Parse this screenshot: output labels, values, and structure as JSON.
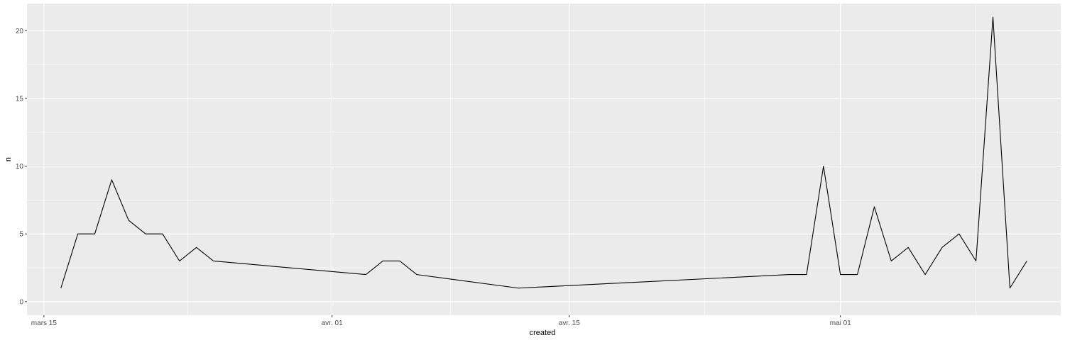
{
  "chart_data": {
    "type": "line",
    "xlabel": "created",
    "ylabel": "n",
    "x_ticks": [
      {
        "date": "2020-03-15",
        "label": "mars 15"
      },
      {
        "date": "2020-04-01",
        "label": "avr. 01"
      },
      {
        "date": "2020-04-15",
        "label": "avr. 15"
      },
      {
        "date": "2020-05-01",
        "label": "mai 01"
      }
    ],
    "y_ticks": [
      0,
      5,
      10,
      15,
      20
    ],
    "xlim": [
      "2020-03-14",
      "2020-05-14"
    ],
    "ylim": [
      -1,
      22
    ],
    "grid": true,
    "series": [
      {
        "color": "#000000",
        "points": [
          {
            "x": "2020-03-16",
            "y": 1
          },
          {
            "x": "2020-03-17",
            "y": 5
          },
          {
            "x": "2020-03-18",
            "y": 5
          },
          {
            "x": "2020-03-19",
            "y": 9
          },
          {
            "x": "2020-03-20",
            "y": 6
          },
          {
            "x": "2020-03-21",
            "y": 5
          },
          {
            "x": "2020-03-22",
            "y": 5
          },
          {
            "x": "2020-03-23",
            "y": 3
          },
          {
            "x": "2020-03-24",
            "y": 4
          },
          {
            "x": "2020-03-25",
            "y": 3
          },
          {
            "x": "2020-04-03",
            "y": 2
          },
          {
            "x": "2020-04-04",
            "y": 3
          },
          {
            "x": "2020-04-05",
            "y": 3
          },
          {
            "x": "2020-04-06",
            "y": 2
          },
          {
            "x": "2020-04-12",
            "y": 1
          },
          {
            "x": "2020-04-28",
            "y": 2
          },
          {
            "x": "2020-04-29",
            "y": 2
          },
          {
            "x": "2020-04-30",
            "y": 10
          },
          {
            "x": "2020-05-01",
            "y": 2
          },
          {
            "x": "2020-05-02",
            "y": 2
          },
          {
            "x": "2020-05-03",
            "y": 7
          },
          {
            "x": "2020-05-04",
            "y": 3
          },
          {
            "x": "2020-05-05",
            "y": 4
          },
          {
            "x": "2020-05-06",
            "y": 2
          },
          {
            "x": "2020-05-07",
            "y": 4
          },
          {
            "x": "2020-05-08",
            "y": 5
          },
          {
            "x": "2020-05-09",
            "y": 3
          },
          {
            "x": "2020-05-10",
            "y": 21
          },
          {
            "x": "2020-05-11",
            "y": 1
          },
          {
            "x": "2020-05-12",
            "y": 3
          }
        ]
      }
    ]
  }
}
